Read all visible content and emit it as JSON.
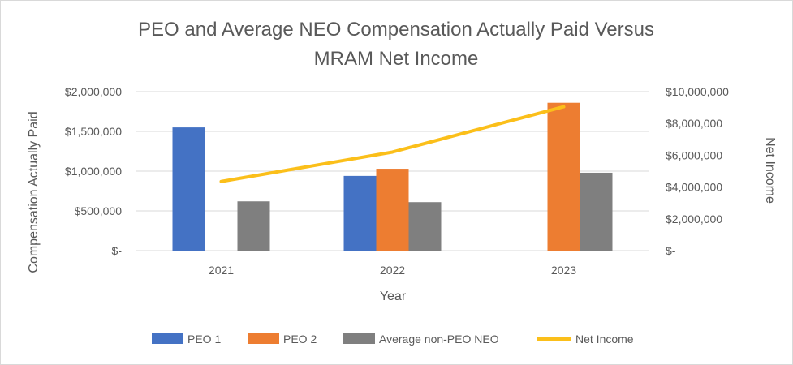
{
  "chart_data": {
    "type": "bar",
    "title_line1": "PEO and Average NEO Compensation Actually Paid Versus",
    "title_line2": "MRAM Net Income",
    "categories": [
      "2021",
      "2022",
      "2023"
    ],
    "series": [
      {
        "name": "PEO 1",
        "color": "#4472c4",
        "values": [
          1550000,
          940000,
          null
        ]
      },
      {
        "name": "PEO 2",
        "color": "#ed7d31",
        "values": [
          null,
          1030000,
          1860000
        ]
      },
      {
        "name": "Average non-PEO NEO",
        "color": "#7f7f7f",
        "values": [
          620000,
          610000,
          980000
        ]
      }
    ],
    "line_series": {
      "name": "Net Income",
      "color": "#fbbf1a",
      "axis": "right",
      "values": [
        4350000,
        6200000,
        9050000
      ]
    },
    "xlabel": "Year",
    "ylabel_left": "Compensation Actually Paid",
    "ylabel_right": "Net Income",
    "ylim_left": [
      0,
      2000000
    ],
    "ylim_right": [
      0,
      10000000
    ],
    "left_ticks": [
      "$-",
      "$500,000",
      "$1,000,000",
      "$1,500,000",
      "$2,000,000"
    ],
    "right_ticks": [
      "$-",
      "$2,000,000",
      "$4,000,000",
      "$6,000,000",
      "$8,000,000",
      "$10,000,000"
    ],
    "legend_position": "bottom"
  }
}
